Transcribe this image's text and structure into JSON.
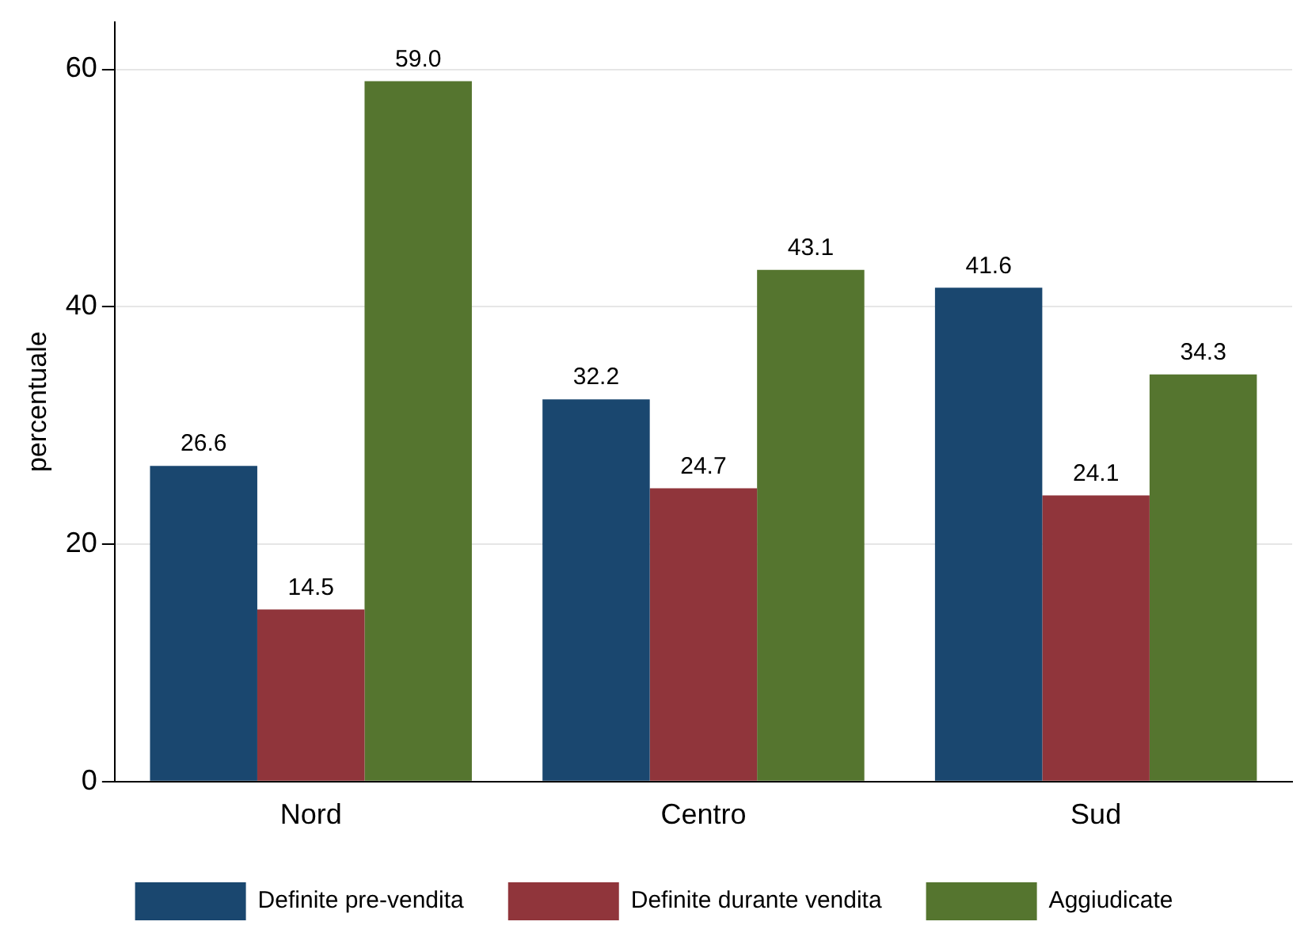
{
  "chart_data": {
    "type": "bar",
    "ylabel": "percentuale",
    "categories": [
      "Nord",
      "Centro",
      "Sud"
    ],
    "series": [
      {
        "name": "Definite pre-vendita",
        "color": "#1a476f",
        "values": [
          26.6,
          32.2,
          41.6
        ]
      },
      {
        "name": "Definite durante vendita",
        "color": "#90353b",
        "values": [
          14.5,
          24.7,
          24.1
        ]
      },
      {
        "name": "Aggiudicate",
        "color": "#55752f",
        "values": [
          59.0,
          43.1,
          34.3
        ]
      }
    ],
    "value_labels": [
      [
        "26.6",
        "32.2",
        "41.6"
      ],
      [
        "14.5",
        "24.7",
        "24.1"
      ],
      [
        "59.0",
        "43.1",
        "34.3"
      ]
    ],
    "ylim": [
      0,
      64
    ],
    "yticks": [
      0,
      20,
      40,
      60
    ],
    "grid": "y",
    "legend": "bottom"
  }
}
